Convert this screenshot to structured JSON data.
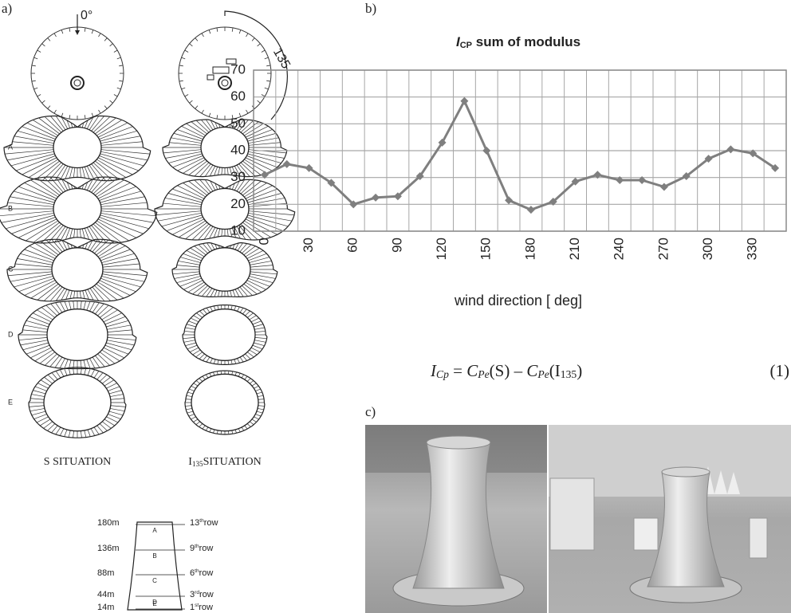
{
  "panel_labels": {
    "a": "a)",
    "b": "b)",
    "c": "c)"
  },
  "panel_a": {
    "compass_left": "0°",
    "compass_right": "135",
    "rows": [
      "A",
      "B",
      "C",
      "D",
      "E"
    ],
    "situation_left": [
      {
        "text": "S SITUATION",
        "style": "normal"
      }
    ],
    "situation_right": [
      {
        "text": "I",
        "style": "normal"
      },
      {
        "text": "135",
        "style": "sub"
      },
      {
        "text": "SITUATION",
        "style": "normal"
      }
    ],
    "tower": {
      "heights": [
        "180m",
        "136m",
        "88m",
        "44m",
        "14m"
      ],
      "letters": [
        "A",
        "B",
        "C",
        "D",
        "E"
      ],
      "rows": [
        [
          {
            "text": "13",
            "style": "normal"
          },
          {
            "text": "th",
            "style": "sup"
          },
          {
            "text": "row",
            "style": "normal"
          }
        ],
        [
          {
            "text": "9",
            "style": "normal"
          },
          {
            "text": "th",
            "style": "sup"
          },
          {
            "text": "row",
            "style": "normal"
          }
        ],
        [
          {
            "text": "6",
            "style": "normal"
          },
          {
            "text": "th",
            "style": "sup"
          },
          {
            "text": "row",
            "style": "normal"
          }
        ],
        [
          {
            "text": "3",
            "style": "normal"
          },
          {
            "text": "rd",
            "style": "sup"
          },
          {
            "text": "row",
            "style": "normal"
          }
        ],
        [
          {
            "text": "1",
            "style": "normal"
          },
          {
            "text": "st",
            "style": "sup"
          },
          {
            "text": "row",
            "style": "normal"
          }
        ]
      ]
    }
  },
  "chart_data": {
    "type": "line",
    "title": [
      {
        "text": "I",
        "style": "italic"
      },
      {
        "text": "CP",
        "style": "sub"
      },
      {
        "text": " sum of modulus",
        "style": "normal"
      }
    ],
    "x_label": "wind direction [ deg]",
    "categories": [
      "0",
      null,
      "30",
      null,
      "60",
      null,
      "90",
      null,
      "120",
      null,
      "150",
      null,
      "180",
      null,
      "210",
      null,
      "240",
      null,
      "270",
      null,
      "300",
      null,
      "330",
      null
    ],
    "values": [
      31,
      35,
      33.5,
      28,
      20,
      22.5,
      23,
      30.5,
      43,
      58.5,
      40,
      21.5,
      18,
      21,
      28.5,
      31,
      29,
      29,
      26.5,
      30.5,
      37,
      40.5,
      39,
      33.5
    ],
    "color": "#7f7f7f",
    "ylim": [
      10,
      70
    ],
    "yticks": [
      10,
      20,
      30,
      40,
      50,
      60,
      70
    ],
    "grid": true
  },
  "equation": {
    "parts": [
      {
        "text": "I",
        "style": "italic"
      },
      {
        "text": "Cp",
        "style": "sub-italic"
      },
      {
        "text": " = ",
        "style": "normal"
      },
      {
        "text": "C",
        "style": "italic"
      },
      {
        "text": "Pe",
        "style": "sub-italic"
      },
      {
        "text": "(S) – ",
        "style": "normal"
      },
      {
        "text": "C",
        "style": "italic"
      },
      {
        "text": "Pe",
        "style": "sub-italic"
      },
      {
        "text": "(I",
        "style": "normal"
      },
      {
        "text": "135",
        "style": "sub"
      },
      {
        "text": ")",
        "style": "normal"
      }
    ],
    "number": "(1)"
  }
}
